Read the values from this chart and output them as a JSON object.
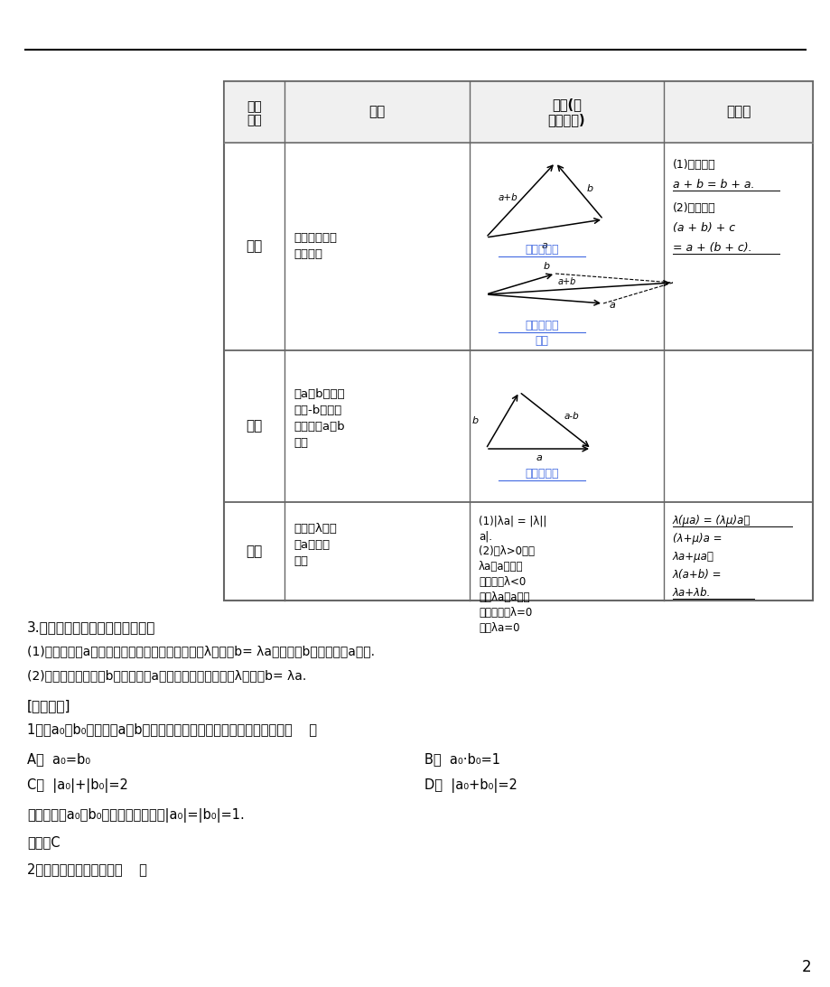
{
  "bg_color": "#f0f0f0",
  "page_bg": "#ffffff",
  "line_color": "#555555",
  "table_border": "#888888",
  "dashed_border": "#aaaaaa",
  "header_bg": "#e8e8e8",
  "title_text": "向量\n运算",
  "col2_header": "定义",
  "col3_header_1": "法则(或",
  "col3_header_2": "几何意义)",
  "col4_header": "运算律",
  "row1_col1": "加法",
  "row1_col2_1": "求两个向量的",
  "row1_col2_2": "和的运算",
  "row1_col3_label1": "三角形法则",
  "row1_col3_label2": "平行四边形",
  "row1_col3_label3": "法则",
  "row2_col1": "减法",
  "row2_col2": [
    "求a与b的相反",
    "向量-b的和的",
    "运算叫做a与b",
    "的差"
  ],
  "row2_col3_label": "三角形法则",
  "row3_col1": "数乘",
  "row3_col2": [
    "求实数λ与向",
    "量a的积的",
    "运算"
  ],
  "row3_col3": [
    "(1)|λa| = |λ||",
    "a|.",
    "(2)当λ>0时，",
    "λa与a的方向",
    "相同；当λ<0",
    "时，λa与a的方",
    "向相反；当λ=0",
    "时，λa=0"
  ],
  "row3_col4": [
    "λ(μa) = (λμ)a；",
    "(λ+μ)a =",
    "λa+μa；",
    "λ(a+b) =",
    "λa+λb."
  ],
  "text_section3": "3.向量共线的判定定理和性质定理",
  "text_para1": "(1)判定定理：a是一个非零向量，若存在一个实数λ，使得b= λa，则向量b与非零向量a共线.",
  "text_para2": "(2)性质定理：若向量b与非零向量a共线，则存在一个实数λ，使得b= λa.",
  "text_jichu": "[基础自测]",
  "text_q1": "1．设a₀，b₀分别是与a，b同向的单位向量，则下列结论中正确的是（    ）",
  "text_A": "A．  a₀=b₀",
  "text_B": "B．  a₀·b₀=1",
  "text_C": "C．  |a₀|+|b₀|=2",
  "text_D": "D．  |a₀+b₀|=2",
  "text_jixi": "解析：因为a₀，b₀是单位向量，所以|a₀|=|b₀|=1.",
  "text_ans": "答案：C",
  "text_q2": "2．下列命题中正确的是（    ）",
  "blue_color": "#4169E1",
  "black": "#000000",
  "page_num": "2"
}
